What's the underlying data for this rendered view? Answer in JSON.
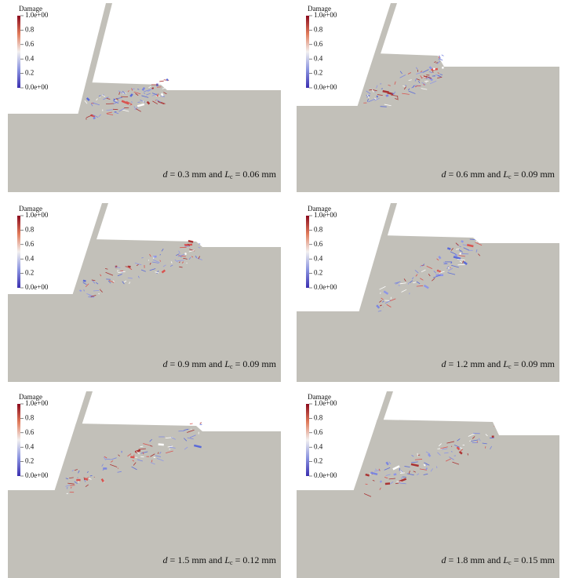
{
  "panels": [
    {
      "colorbar": {
        "title": "Damage",
        "ticks": [
          "1.0e+00",
          "0.8",
          "0.6",
          "0.4",
          "0.2",
          "0.0e+00"
        ]
      },
      "caption": [
        "d",
        " = 0.3 mm and ",
        "L",
        "c",
        " = 0.06 mm"
      ]
    },
    {
      "colorbar": {
        "title": "Damage",
        "ticks": [
          "1.0e+00",
          "0.8",
          "0.6",
          "0.4",
          "0.2",
          "0.0e+00"
        ]
      },
      "caption": [
        "d",
        " = 0.6 mm and ",
        "L",
        "c",
        " = 0.09 mm"
      ]
    },
    {
      "colorbar": {
        "title": "Damage",
        "ticks": [
          "1.0e+00",
          "0.8",
          "0.6",
          "0.4",
          "0.2",
          "0.0e+00"
        ]
      },
      "caption": [
        "d",
        " = 0.9 mm and ",
        "L",
        "c",
        " = 0.09 mm"
      ]
    },
    {
      "colorbar": {
        "title": "Damage",
        "ticks": [
          "1.0e+00",
          "0.8",
          "0.6",
          "0.4",
          "0.2",
          "0.0e+00"
        ]
      },
      "caption": [
        "d",
        " = 1.2 mm and ",
        "L",
        "c",
        " = 0.09 mm"
      ]
    },
    {
      "colorbar": {
        "title": "Damage",
        "ticks": [
          "1.0e+00",
          "0.8",
          "0.6",
          "0.4",
          "0.2",
          "0.0e+00"
        ]
      },
      "caption": [
        "d",
        " = 1.5 mm and ",
        "L",
        "c",
        " = 0.12 mm"
      ]
    },
    {
      "colorbar": {
        "title": "Damage",
        "ticks": [
          "1.0e+00",
          "0.8",
          "0.6",
          "0.4",
          "0.2",
          "0.0e+00"
        ]
      },
      "caption": [
        "d",
        " = 1.8 mm and ",
        "L",
        "c",
        " = 0.15 mm"
      ]
    }
  ]
}
